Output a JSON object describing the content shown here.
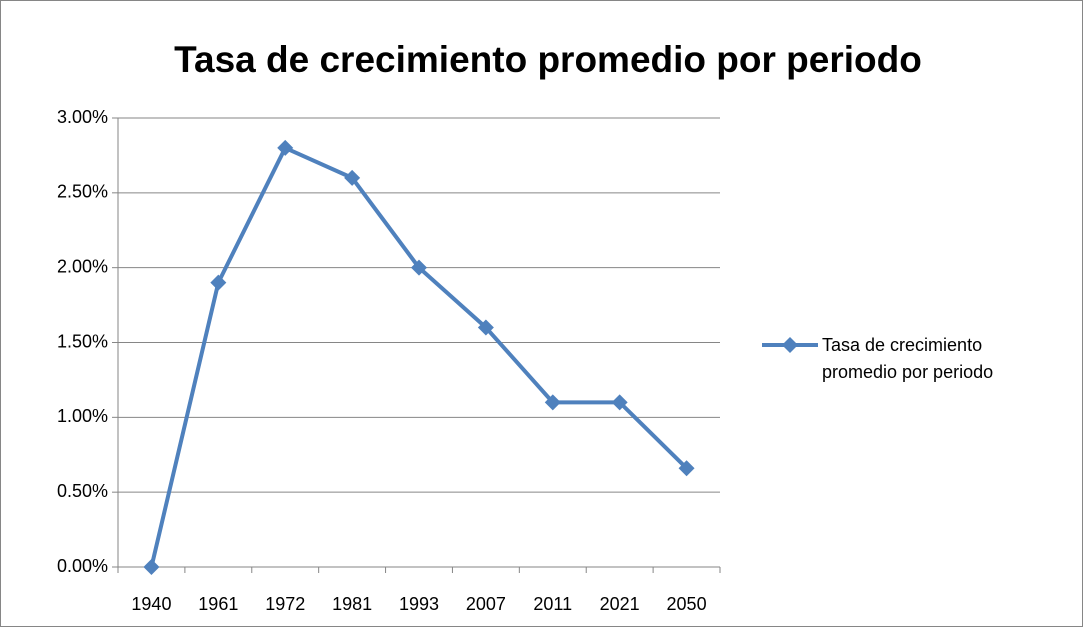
{
  "chart_data": {
    "type": "line",
    "title": "Tasa de crecimiento promedio por periodo",
    "categories": [
      "1940",
      "1961",
      "1972",
      "1981",
      "1993",
      "2007",
      "2011",
      "2021",
      "2050"
    ],
    "series": [
      {
        "name": "Tasa de crecimiento promedio por periodo",
        "color": "#4f81bd",
        "values": [
          0,
          1.9,
          2.8,
          2.6,
          2.0,
          1.6,
          1.1,
          1.1,
          0.66
        ]
      }
    ],
    "ylim": [
      0,
      3
    ],
    "yticks": [
      {
        "value": 0,
        "label": "0.00%"
      },
      {
        "value": 0.5,
        "label": "0.50%"
      },
      {
        "value": 1,
        "label": "1.00%"
      },
      {
        "value": 1.5,
        "label": "1.50%"
      },
      {
        "value": 2,
        "label": "2.00%"
      },
      {
        "value": 2.5,
        "label": "2.50%"
      },
      {
        "value": 3,
        "label": "3.00%"
      }
    ],
    "grid": true,
    "legend": "right"
  }
}
